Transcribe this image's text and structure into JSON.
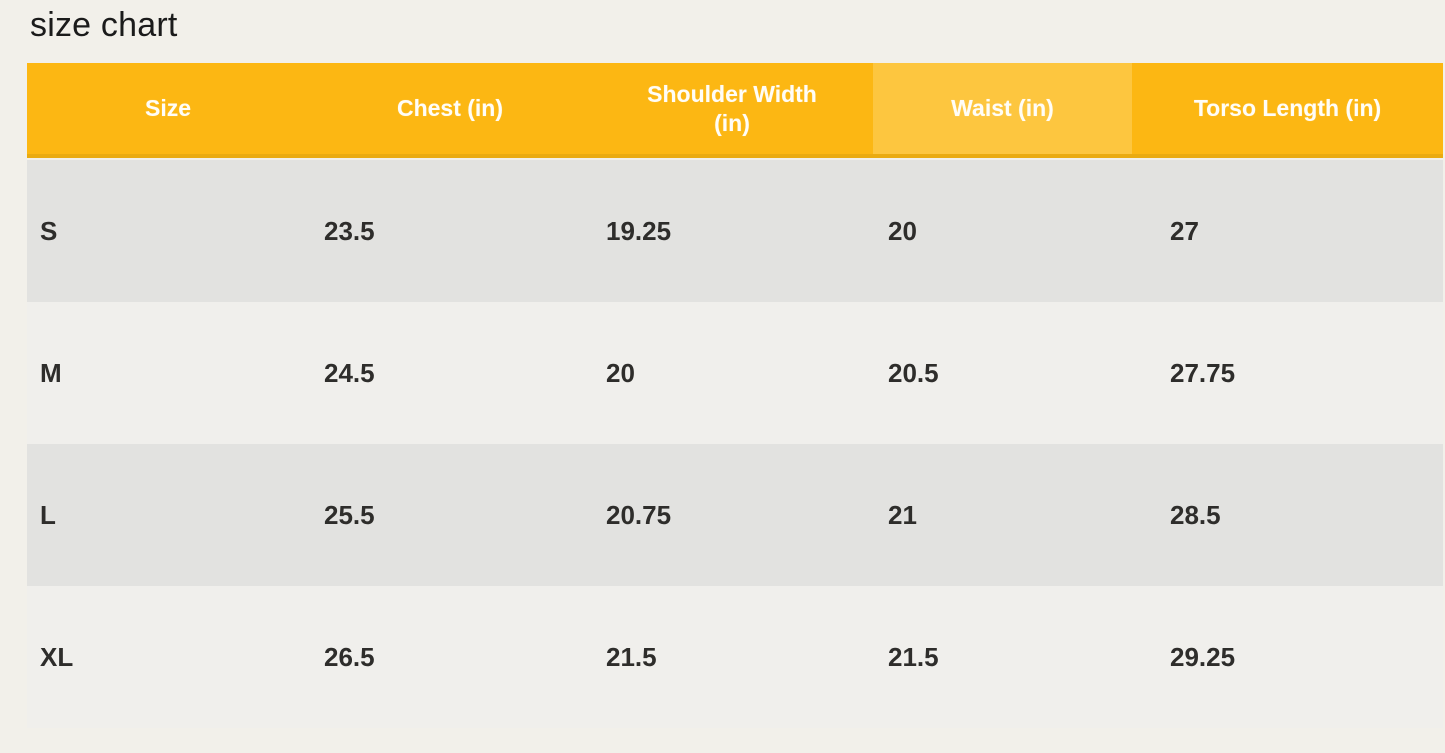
{
  "title": "size chart",
  "chart_data": {
    "type": "table",
    "title": "size chart",
    "columns": [
      "Size",
      "Chest (in)",
      "Shoulder Width (in)",
      "Waist (in)",
      "Torso Length (in)"
    ],
    "rows": [
      [
        "S",
        "23.5",
        "19.25",
        "20",
        "27"
      ],
      [
        "M",
        "24.5",
        "20",
        "20.5",
        "27.75"
      ],
      [
        "L",
        "25.5",
        "20.75",
        "21",
        "28.5"
      ],
      [
        "XL",
        "26.5",
        "21.5",
        "21.5",
        "29.25"
      ]
    ],
    "layout_hints": {
      "header_text_align": "center",
      "body_text_align": "left",
      "row_striping": "gray / light alternating starting gray"
    }
  },
  "colors": {
    "page_bg": "#f2f0ea",
    "header_bg": "#fcb713",
    "header_waist_bg": "#fdc63f",
    "header_shadow": "#eaab10",
    "header_text": "#fffdf7",
    "row_alt_bg": "#e2e2e0",
    "row_bg": "#f0efec",
    "cell_text": "#2e2d2b"
  }
}
